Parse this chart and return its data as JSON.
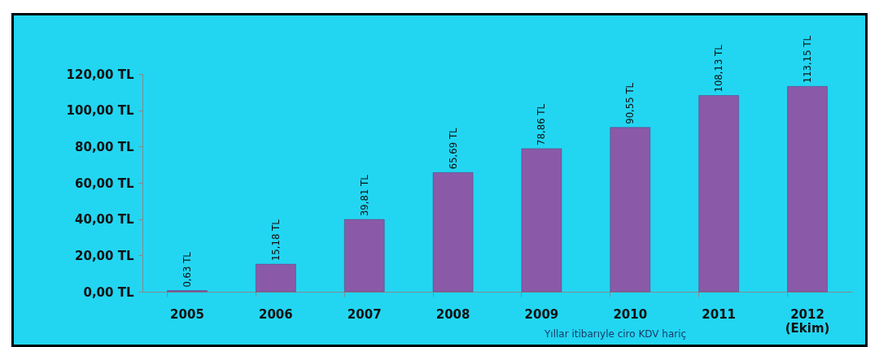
{
  "chart_data": {
    "type": "bar",
    "categories": [
      "2005",
      "2006",
      "2007",
      "2008",
      "2009",
      "2010",
      "2011",
      "2012 (Ekim)"
    ],
    "values": [
      0.63,
      15.18,
      39.81,
      65.69,
      78.86,
      90.55,
      108.13,
      113.15
    ],
    "value_labels": [
      "0,63 TL",
      "15,18 TL",
      "39,81 TL",
      "65,69 TL",
      "78,86 TL",
      "90,55 TL",
      "108,13 TL",
      "113,15 TL"
    ],
    "color": "#8a5aa8",
    "ylim": [
      0,
      120
    ],
    "yticks": [
      {
        "value": 0,
        "label": "0,00 TL"
      },
      {
        "value": 20,
        "label": "20,00 TL"
      },
      {
        "value": 40,
        "label": "40,00 TL"
      },
      {
        "value": 60,
        "label": "60,00 TL"
      },
      {
        "value": 80,
        "label": "80,00 TL"
      },
      {
        "value": 100,
        "label": "100,00 TL"
      },
      {
        "value": 120,
        "label": "120,00 TL"
      }
    ],
    "grid": false,
    "annotations": [
      "Yıllar itibarıyle ciro KDV hariç"
    ]
  }
}
